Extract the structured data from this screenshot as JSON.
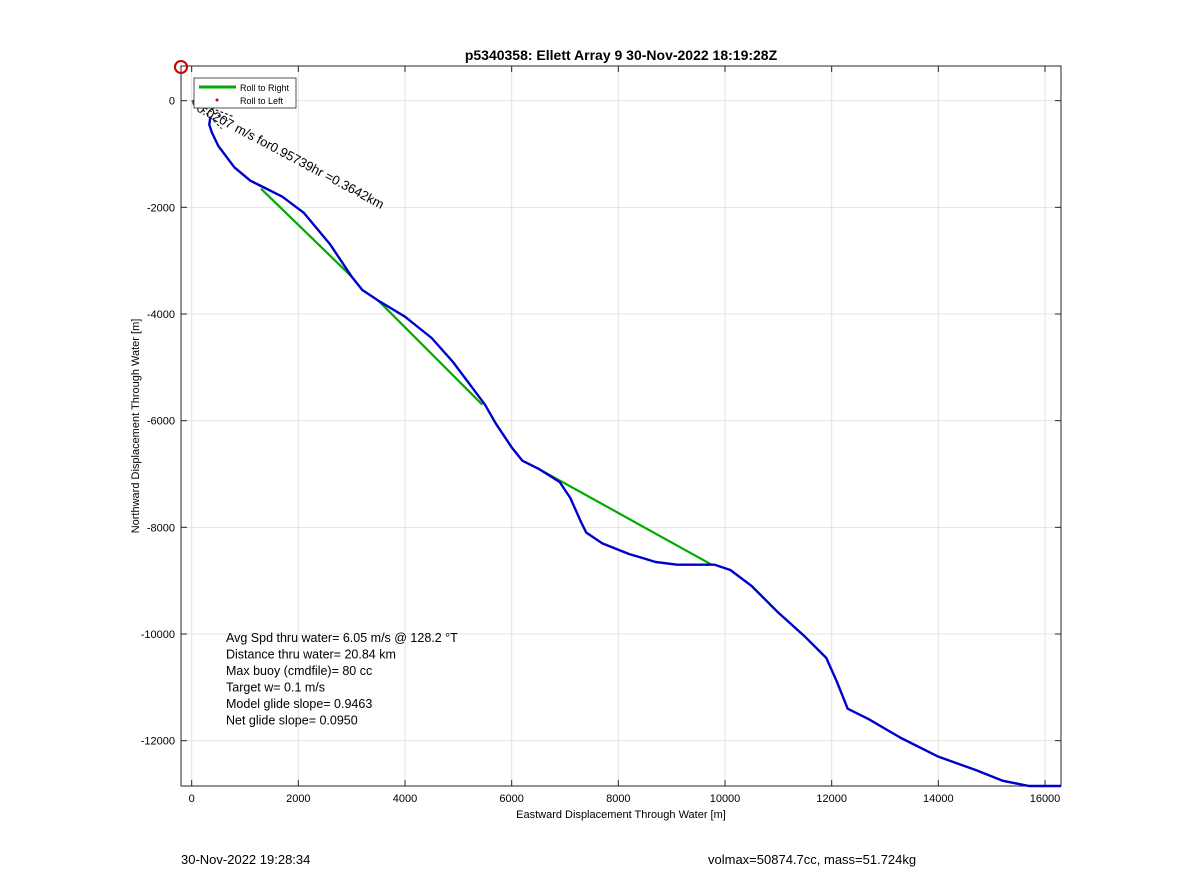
{
  "chart_data": {
    "type": "line",
    "title": "p5340358: Ellett Array 9 30-Nov-2022 18:19:28Z",
    "xlabel": "Eastward Displacement Through Water [m]",
    "ylabel": "Northward Displacement Through Water [m]",
    "xlim": [
      -200,
      16300
    ],
    "ylim": [
      -12850,
      650
    ],
    "xticks": [
      0,
      2000,
      4000,
      6000,
      8000,
      10000,
      12000,
      14000,
      16000
    ],
    "yticks": [
      0,
      -2000,
      -4000,
      -6000,
      -8000,
      -10000,
      -12000
    ],
    "grid": true,
    "legend": {
      "placement": "top-left",
      "entries": [
        "Roll to Right",
        "Roll to Left"
      ]
    },
    "series": [
      {
        "name": "Roll to Right",
        "color": "#00aa00",
        "style": "line",
        "segments": [
          {
            "x": [
              1300,
              3000
            ],
            "y": [
              -1650,
              -3300
            ]
          },
          {
            "x": [
              3500,
              5450
            ],
            "y": [
              -3750,
              -5700
            ]
          },
          {
            "x": [
              6500,
              9750
            ],
            "y": [
              -6900,
              -8700
            ]
          }
        ]
      },
      {
        "name": "Roll to Left",
        "color": "#dd0000",
        "style": "marker",
        "x": [
          60
        ],
        "y": [
          -20
        ]
      },
      {
        "name": "track",
        "color": "#0000cc",
        "style": "line",
        "x": [
          350,
          330,
          380,
          500,
          800,
          1100,
          1300,
          1700,
          2100,
          2600,
          3000,
          3200,
          3500,
          4000,
          4500,
          4900,
          5200,
          5500,
          5700,
          6000,
          6200,
          6500,
          6900,
          7100,
          7300,
          7400,
          7700,
          8200,
          8700,
          9100,
          9500,
          9800,
          10100,
          10500,
          11000,
          11500,
          11900,
          12100,
          12300,
          12700,
          13300,
          14000,
          14700,
          15200,
          15700,
          16300
        ],
        "y": [
          -300,
          -450,
          -600,
          -850,
          -1250,
          -1500,
          -1600,
          -1800,
          -2100,
          -2700,
          -3300,
          -3550,
          -3750,
          -4050,
          -4450,
          -4900,
          -5300,
          -5700,
          -6050,
          -6500,
          -6750,
          -6900,
          -7150,
          -7450,
          -7900,
          -8100,
          -8300,
          -8500,
          -8650,
          -8700,
          -8700,
          -8700,
          -8800,
          -9100,
          -9600,
          -10050,
          -10450,
          -10900,
          -11400,
          -11600,
          -11950,
          -12300,
          -12550,
          -12750,
          -12850,
          -12850
        ]
      }
    ],
    "annotations": {
      "current": "0.0207 m/s for0.95739hr =0.3642km",
      "stats": [
        "Avg Spd thru water=  6.05 m/s @ 128.2 °T",
        "Distance thru water= 20.84 km",
        "Max buoy (cmdfile)= 80 cc",
        "Target w= 0.1 m/s",
        "Model glide slope= 0.9463",
        "Net glide slope= 0.0950"
      ]
    }
  },
  "footer": {
    "timestamp": "30-Nov-2022 19:28:34",
    "volmax_mass": "volmax=50874.7cc, mass=51.724kg"
  }
}
